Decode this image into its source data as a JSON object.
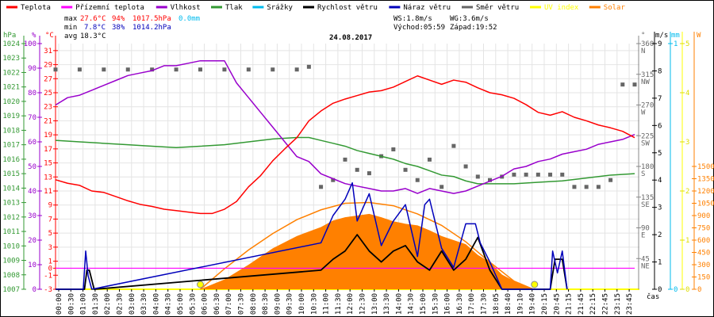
{
  "legend": [
    {
      "label": "Teplota",
      "color": "#ff0000"
    },
    {
      "label": "Přízemní teplota",
      "color": "#ff00ff"
    },
    {
      "label": "Vlhkost",
      "color": "#9900cc"
    },
    {
      "label": "Tlak",
      "color": "#339933"
    },
    {
      "label": "Srážky",
      "color": "#00bbee"
    },
    {
      "label": "Rychlost větru",
      "color": "#000000"
    },
    {
      "label": "Náraz větru",
      "color": "#0000bb"
    },
    {
      "label": "Směr větru",
      "color": "#666666"
    },
    {
      "label": "UV index",
      "color": "#ffff00"
    },
    {
      "label": "Solar",
      "color": "#ff8000"
    }
  ],
  "stats": {
    "max_label": "max",
    "min_label": "min",
    "avg_label": "avg",
    "max_temp": "27.6°C",
    "max_hum": "94%",
    "max_press": "1017.5hPa",
    "rain": "0.0mm",
    "min_temp": "7.8°C",
    "min_hum": "38%",
    "min_press": "1014.2hPa",
    "avg_temp": "18.3°C"
  },
  "wind_info": {
    "ws": "WS:1.8m/s",
    "wg": "WG:3.6m/s",
    "sunrise": "Východ:05:59",
    "sunset": "Západ:19:52"
  },
  "chart_data": {
    "type": "line",
    "title": "24.08.2017",
    "xlabel": "čas",
    "x_ticks": [
      "00:00",
      "00:30",
      "01:00",
      "01:30",
      "02:00",
      "02:30",
      "03:00",
      "03:30",
      "04:00",
      "04:30",
      "05:00",
      "05:30",
      "06:00",
      "06:30",
      "07:00",
      "07:30",
      "08:00",
      "08:30",
      "09:00",
      "09:30",
      "10:00",
      "10:30",
      "11:00",
      "11:30",
      "12:00",
      "12:30",
      "13:00",
      "13:30",
      "14:00",
      "14:30",
      "15:00",
      "15:30",
      "16:00",
      "16:30",
      "17:00",
      "17:30",
      "18:05",
      "18:40",
      "19:10",
      "19:40",
      "20:15",
      "20:45",
      "21:15",
      "21:45",
      "22:15",
      "22:45",
      "23:15",
      "23:45"
    ],
    "axes": {
      "pressure": {
        "label": "hPa",
        "range": [
          1007,
          1024
        ],
        "ticks": [
          1024,
          1023,
          1022,
          1021,
          1020,
          1019,
          1018,
          1017,
          1016,
          1015,
          1014,
          1013,
          1012,
          1011,
          1010,
          1009,
          1008,
          1007
        ],
        "color": "#339933"
      },
      "humidity": {
        "label": "%",
        "range": [
          0,
          100
        ],
        "ticks": [
          100,
          90,
          80,
          70,
          60,
          50,
          40,
          30,
          20,
          10,
          0
        ],
        "color": "#9900cc"
      },
      "temperature": {
        "label": "°C",
        "range": [
          -3,
          32
        ],
        "ticks": [
          31,
          29,
          27,
          25,
          23,
          21,
          19,
          17,
          15,
          13,
          11,
          9,
          7,
          5,
          3,
          1,
          0,
          -1,
          -3
        ],
        "color": "#ff0000"
      },
      "wind_dir": {
        "label": "°",
        "range": [
          0,
          360
        ],
        "ticks": [
          {
            "v": 360,
            "d": "N"
          },
          {
            "v": 315,
            "d": "NW"
          },
          {
            "v": 270,
            "d": "W"
          },
          {
            "v": 225,
            "d": "SW"
          },
          {
            "v": 180,
            "d": "S"
          },
          {
            "v": 135,
            "d": "SE"
          },
          {
            "v": 90,
            "d": "E"
          },
          {
            "v": 45,
            "d": "NE"
          }
        ],
        "color": "#666666"
      },
      "wind_speed": {
        "label": "m/s",
        "range": [
          0,
          9
        ],
        "ticks": [
          9,
          8,
          7,
          6,
          5,
          4,
          3,
          2,
          1,
          0
        ],
        "color": "#000000"
      },
      "rain": {
        "label": "mm",
        "range": [
          0,
          1
        ],
        "ticks": [
          1,
          0
        ],
        "color": "#00bbee"
      },
      "uv": {
        "label": "",
        "range": [
          0,
          5
        ],
        "ticks": [
          5,
          4,
          3,
          2,
          1,
          0
        ],
        "color": "#ffff00"
      },
      "solar": {
        "label": "W",
        "range": [
          0,
          3000
        ],
        "ticks": [
          1500,
          1350,
          1200,
          1050,
          900,
          750,
          600,
          450,
          300,
          150,
          0
        ],
        "color": "#ff8000"
      }
    },
    "series": [
      {
        "name": "Teplota",
        "axis": "temperature",
        "x": [
          0,
          0.5,
          1,
          1.5,
          2,
          2.5,
          3,
          3.5,
          4,
          4.5,
          5,
          5.5,
          6,
          6.5,
          7,
          7.5,
          8,
          8.5,
          9,
          9.5,
          10,
          10.5,
          11,
          11.5,
          12,
          12.5,
          13,
          13.5,
          14,
          14.5,
          15,
          15.5,
          16,
          16.5,
          17,
          17.5,
          18,
          18.5,
          19,
          19.5,
          20,
          20.5,
          21,
          21.5,
          22,
          22.5,
          23,
          23.5,
          24
        ],
        "values": [
          12.6,
          12.1,
          11.8,
          11.0,
          10.8,
          10.2,
          9.6,
          9.1,
          8.8,
          8.4,
          8.2,
          8.0,
          7.8,
          7.8,
          8.4,
          9.5,
          11.6,
          13.2,
          15.3,
          17.0,
          18.6,
          21.0,
          22.4,
          23.5,
          24.1,
          24.6,
          25.1,
          25.3,
          25.8,
          26.6,
          27.4,
          26.8,
          26.2,
          26.8,
          26.5,
          25.7,
          25.0,
          24.7,
          24.2,
          23.3,
          22.2,
          21.8,
          22.3,
          21.5,
          21.0,
          20.4,
          20.0,
          19.5,
          18.6
        ]
      },
      {
        "name": "Přízemní teplota",
        "axis": "temperature",
        "x": [
          0,
          24
        ],
        "values": [
          0,
          0
        ]
      },
      {
        "name": "Vlhkost",
        "axis": "humidity",
        "x": [
          0,
          0.5,
          1,
          1.5,
          2,
          2.5,
          3,
          3.5,
          4,
          4.5,
          5,
          5.5,
          6,
          6.5,
          7,
          7.5,
          8,
          8.5,
          9,
          9.5,
          10,
          10.5,
          11,
          11.5,
          12,
          12.5,
          13,
          13.5,
          14,
          14.5,
          15,
          15.5,
          16,
          16.5,
          17,
          17.5,
          18,
          18.5,
          19,
          19.5,
          20,
          20.5,
          21,
          21.5,
          22,
          22.5,
          23,
          23.5,
          24
        ],
        "values": [
          75,
          78,
          79,
          81,
          83,
          85,
          87,
          88,
          89,
          91,
          91,
          92,
          93,
          93,
          93,
          84,
          78,
          72,
          66,
          60,
          54,
          52,
          47,
          45,
          43,
          42,
          41,
          40,
          40,
          41,
          39,
          41,
          40,
          39,
          40,
          42,
          44,
          46,
          49,
          50,
          52,
          53,
          55,
          56,
          57,
          59,
          60,
          61,
          63
        ]
      },
      {
        "name": "Tlak",
        "axis": "pressure",
        "x": [
          0,
          1,
          2,
          3,
          4,
          5,
          6,
          7,
          8,
          9,
          10,
          10.5,
          11,
          11.5,
          12,
          12.5,
          13,
          13.5,
          14,
          14.5,
          15,
          15.5,
          16,
          16.5,
          17,
          17.5,
          18,
          19,
          20,
          21,
          22,
          23,
          24
        ],
        "values": [
          1017.3,
          1017.2,
          1017.1,
          1017.0,
          1016.9,
          1016.8,
          1016.9,
          1017.0,
          1017.2,
          1017.4,
          1017.5,
          1017.5,
          1017.3,
          1017.1,
          1016.9,
          1016.6,
          1016.4,
          1016.2,
          1016.0,
          1015.7,
          1015.5,
          1015.2,
          1014.9,
          1014.8,
          1014.5,
          1014.3,
          1014.3,
          1014.3,
          1014.4,
          1014.5,
          1014.7,
          1014.9,
          1015.0
        ]
      },
      {
        "name": "Rychlost větru",
        "axis": "wind_speed",
        "x": [
          0,
          1.2,
          1.3,
          1.4,
          1.6,
          11,
          11.5,
          12,
          12.5,
          13,
          13.5,
          14,
          14.5,
          15,
          15.5,
          16,
          16.5,
          17,
          17.5,
          18,
          18.5,
          20.5,
          20.7,
          21.0,
          21.2
        ],
        "values": [
          0,
          0,
          0.7,
          0.7,
          0,
          0.7,
          1.1,
          1.4,
          2.0,
          1.4,
          1.0,
          1.4,
          1.6,
          1.0,
          0.7,
          1.4,
          0.7,
          1.1,
          1.9,
          0.7,
          0,
          0,
          1.1,
          1.1,
          0
        ]
      },
      {
        "name": "Náraz větru",
        "axis": "wind_speed",
        "x": [
          0,
          1.15,
          1.25,
          1.35,
          1.5,
          11,
          11.5,
          12,
          12.3,
          12.5,
          13,
          13.5,
          14,
          14.5,
          15,
          15.3,
          15.5,
          16,
          16.5,
          17,
          17.4,
          17.6,
          18,
          18.5,
          20.5,
          20.6,
          20.8,
          21.0,
          21.2
        ],
        "values": [
          0,
          0,
          1.4,
          0.5,
          0,
          1.7,
          2.7,
          3.3,
          3.9,
          2.5,
          3.5,
          1.6,
          2.5,
          3.1,
          1.2,
          3.1,
          3.3,
          1.5,
          0.8,
          2.4,
          2.4,
          1.7,
          1.0,
          0,
          0,
          1.4,
          0.6,
          1.4,
          0
        ]
      },
      {
        "name": "Směr větru",
        "axis": "wind_dir",
        "x": [
          0,
          1,
          2,
          3,
          4,
          5,
          6,
          7,
          8,
          9,
          10,
          10.5,
          11,
          11.5,
          12,
          12.5,
          13,
          13.5,
          14,
          14.5,
          15,
          15.5,
          16,
          16.5,
          17,
          17.5,
          18,
          18.5,
          19,
          19.5,
          20,
          20.5,
          21,
          21.5,
          22,
          22.5,
          23,
          23.5,
          24
        ],
        "values": [
          322,
          322,
          322,
          322,
          322,
          322,
          322,
          322,
          322,
          322,
          322,
          326,
          150,
          160,
          190,
          175,
          170,
          195,
          205,
          175,
          160,
          190,
          150,
          210,
          180,
          165,
          160,
          165,
          168,
          168,
          168,
          168,
          168,
          150,
          150,
          150,
          160,
          300,
          300
        ]
      },
      {
        "name": "UV index",
        "axis": "uv",
        "x": [
          0,
          24
        ],
        "values": [
          0,
          0
        ]
      },
      {
        "name": "Solar",
        "axis": "solar",
        "x": [
          6,
          7,
          8,
          9,
          10,
          11,
          11.5,
          12,
          12.5,
          13,
          13.5,
          14,
          14.5,
          15,
          15.5,
          16,
          16.5,
          17,
          17.5,
          18,
          18.5,
          19,
          19.5,
          19.8
        ],
        "values": [
          0,
          120,
          300,
          500,
          650,
          760,
          840,
          880,
          900,
          920,
          880,
          830,
          800,
          780,
          720,
          650,
          600,
          550,
          420,
          330,
          180,
          100,
          40,
          0
        ]
      },
      {
        "name": "Solar teoretický",
        "axis": "solar",
        "x": [
          6,
          7,
          8,
          9,
          10,
          11,
          12,
          13,
          14,
          15,
          16,
          17,
          18,
          19,
          19.8
        ],
        "values": [
          0,
          250,
          480,
          680,
          850,
          970,
          1050,
          1060,
          1020,
          920,
          780,
          580,
          330,
          100,
          0
        ]
      }
    ],
    "sun_markers": {
      "sunrise_hour": 6.0,
      "sunset_hour": 19.85
    }
  }
}
